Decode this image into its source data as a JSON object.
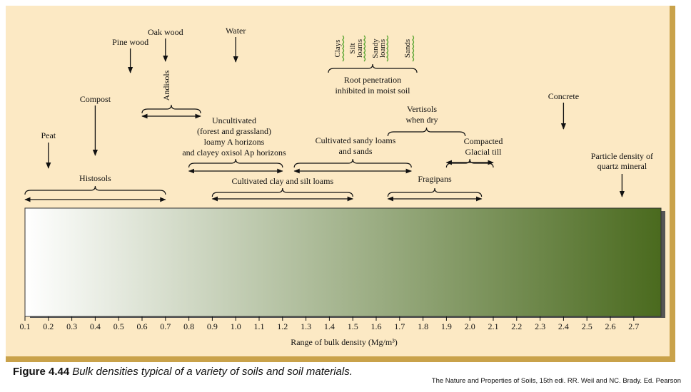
{
  "figure": {
    "label": "Figure 4.44",
    "caption": "Bulk densities typical of a variety of soils and soil materials.",
    "credit": "The Nature and Properties of Soils, 15th edi. RR. Weil and NC. Brady.  Ed. Pearson"
  },
  "axis": {
    "label": "Range of bulk density (Mg/m³)",
    "min": 0.1,
    "max": 2.8,
    "ticks": [
      "0.1",
      "0.2",
      "0.3",
      "0.4",
      "0.5",
      "0.6",
      "0.7",
      "0.8",
      "0.9",
      "1.0",
      "1.1",
      "1.2",
      "1.3",
      "1.4",
      "1.5",
      "1.6",
      "1.7",
      "1.8",
      "1.9",
      "2.0",
      "2.1",
      "2.2",
      "2.3",
      "2.4",
      "2.5",
      "2.6",
      "2.7"
    ]
  },
  "colors": {
    "panel": "#fce9c4",
    "panel_border": "#c9a24a",
    "gradient_start": "#ffffff",
    "gradient_end": "#4a6a1e",
    "soil_wave": "#5aa532"
  },
  "point_materials": [
    {
      "name": "Peat",
      "value": 0.2
    },
    {
      "name": "Compost",
      "value": 0.4
    },
    {
      "name": "Pine wood",
      "value": 0.55
    },
    {
      "name": "Oak wood",
      "value": 0.7
    },
    {
      "name": "Water",
      "value": 1.0
    },
    {
      "name": "Concrete",
      "value": 2.4
    },
    {
      "name": "Particle density of quartz mineral",
      "lines": [
        "Particle density of",
        "quartz mineral"
      ],
      "value": 2.65
    }
  ],
  "ranges": [
    {
      "name": "Histosols",
      "lines": [
        "Histosols"
      ],
      "min": 0.1,
      "max": 0.7
    },
    {
      "name": "Andisols",
      "lines": [
        "Andisols"
      ],
      "min": 0.6,
      "max": 0.85,
      "vertical_label": true
    },
    {
      "name": "Uncultivated (forest and grassland) loamy A horizons and clayey oxisol Ap horizons",
      "lines": [
        "Uncultivated",
        "(forest and grassland)",
        "loamy A horizons",
        "and clayey oxisol Ap horizons"
      ],
      "min": 0.8,
      "max": 1.2
    },
    {
      "name": "Cultivated clay and silt loams",
      "lines": [
        "Cultivated clay and silt loams"
      ],
      "min": 0.9,
      "max": 1.5
    },
    {
      "name": "Cultivated sandy loams and sands",
      "lines": [
        "Cultivated sandy loams",
        "and sands"
      ],
      "min": 1.25,
      "max": 1.75
    },
    {
      "name": "Vertisols when dry",
      "lines": [
        "Vertisols",
        "when dry"
      ],
      "min": 1.65,
      "max": 1.98
    },
    {
      "name": "Compacted Glacial till",
      "lines": [
        "Compacted",
        "Glacial till"
      ],
      "min": 1.9,
      "max": 2.1
    },
    {
      "name": "Fragipans",
      "lines": [
        "Fragipans"
      ],
      "min": 1.65,
      "max": 2.05
    }
  ],
  "root_penetration": {
    "soils": [
      "Clays",
      "Silt loams",
      "Sandy loams",
      "Sands"
    ],
    "soil_lines": [
      [
        "Clays"
      ],
      [
        "Silt",
        "loams"
      ],
      [
        "Sandy",
        "loams"
      ],
      [
        "Sands"
      ]
    ],
    "note": "Root penetration inhibited in moist soil",
    "note_lines": [
      "Root penetration",
      "inhibited in moist soil"
    ]
  }
}
